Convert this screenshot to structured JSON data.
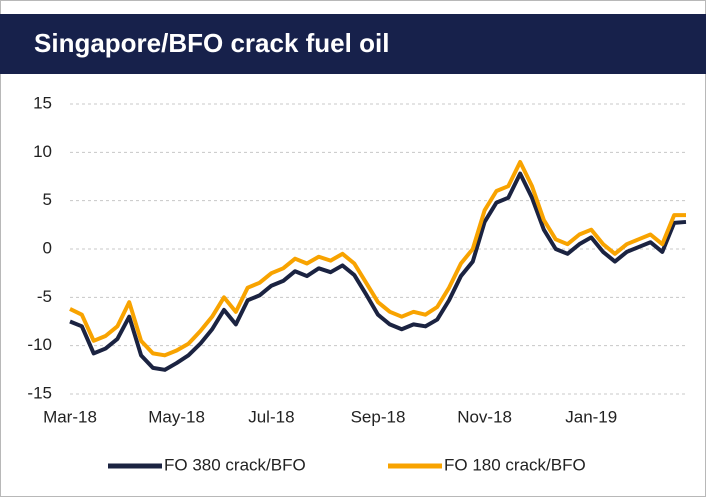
{
  "chart_data": {
    "type": "line",
    "title": "Singapore/BFO crack fuel oil",
    "categories": [
      "Mar-18",
      null,
      null,
      null,
      null,
      null,
      null,
      null,
      null,
      "May-18",
      null,
      null,
      null,
      null,
      null,
      null,
      null,
      "Jul-18",
      null,
      null,
      null,
      null,
      null,
      null,
      null,
      null,
      "Sep-18",
      null,
      null,
      null,
      null,
      null,
      null,
      null,
      null,
      "Nov-18",
      null,
      null,
      null,
      null,
      null,
      null,
      null,
      null,
      "Jan-19",
      null,
      null,
      null,
      null,
      null,
      null,
      null,
      null
    ],
    "series": [
      {
        "name": "FO 380 crack/BFO",
        "color": "#1b2341",
        "values": [
          -7.5,
          -8,
          -10.8,
          -10.3,
          -9.3,
          -7,
          -11,
          -12.3,
          -12.5,
          -11.8,
          -11,
          -9.8,
          -8.3,
          -6.3,
          -7.8,
          -5.3,
          -4.8,
          -3.8,
          -3.3,
          -2.3,
          -2.8,
          -2,
          -2.4,
          -1.7,
          -2.7,
          -4.7,
          -6.8,
          -7.8,
          -8.3,
          -7.8,
          -8,
          -7.3,
          -5.3,
          -2.8,
          -1.3,
          2.8,
          4.8,
          5.3,
          7.8,
          5.3,
          2,
          0,
          -0.5,
          0.5,
          1.2,
          -0.3,
          -1.3,
          -0.3,
          0.2,
          0.7,
          -0.3,
          2.7,
          2.8
        ]
      },
      {
        "name": "FO 180 crack/BFO",
        "color": "#f8a300",
        "values": [
          -6.2,
          -6.8,
          -9.5,
          -9,
          -8,
          -5.5,
          -9.5,
          -10.8,
          -11,
          -10.5,
          -9.8,
          -8.5,
          -7,
          -5,
          -6.5,
          -4,
          -3.5,
          -2.5,
          -2,
          -1,
          -1.5,
          -0.8,
          -1.2,
          -0.5,
          -1.5,
          -3.5,
          -5.5,
          -6.5,
          -7,
          -6.5,
          -6.8,
          -6,
          -4,
          -1.5,
          0,
          4,
          6,
          6.5,
          9,
          6.5,
          3,
          1,
          0.5,
          1.5,
          2,
          0.5,
          -0.5,
          0.5,
          1,
          1.5,
          0.5,
          3.5,
          3.5
        ]
      }
    ],
    "ylim": [
      -15,
      15
    ],
    "yticks": [
      -15,
      -10,
      -5,
      0,
      5,
      10,
      15
    ],
    "grid": true,
    "legend": "bottom"
  }
}
